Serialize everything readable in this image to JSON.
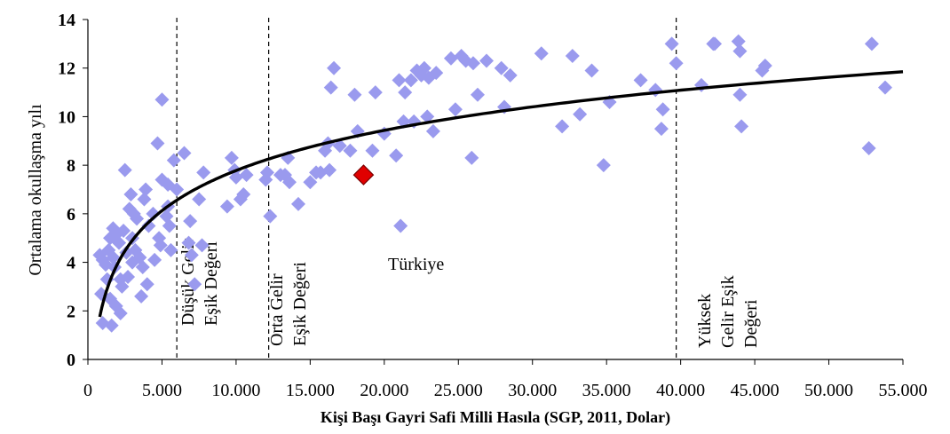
{
  "chart_data": {
    "type": "scatter",
    "ylabel": "Ortalama  okullaşma yılı",
    "xlabel": "Kişi Başı Gayri Safi Milli Hasıla (SGP, 2011, Dolar)",
    "xlim": [
      0,
      55000
    ],
    "ylim": [
      0,
      14
    ],
    "x_ticks": [
      0,
      5000,
      10000,
      15000,
      20000,
      25000,
      30000,
      35000,
      40000,
      45000,
      50000,
      55000
    ],
    "x_tick_labels": [
      "0",
      "5.000",
      "10.000",
      "15.000",
      "20.000",
      "25.000",
      "30.000",
      "35.000",
      "40.000",
      "45.000",
      "50.000",
      "55.000"
    ],
    "y_ticks": [
      0,
      2,
      4,
      6,
      8,
      10,
      12,
      14
    ],
    "y_tick_labels": [
      "0",
      "2",
      "4",
      "6",
      "8",
      "10",
      "12",
      "14"
    ],
    "thresholds": [
      {
        "x": 6000,
        "lines": [
          "Düşük Gelir",
          "Eşik Değeri"
        ]
      },
      {
        "x": 12200,
        "lines": [
          "Orta Gelir",
          "Eşik Değeri"
        ]
      },
      {
        "x": 39700,
        "lines": [
          "Yüksek",
          "Gelir Eşik",
          "Değeri"
        ]
      }
    ],
    "highlight": {
      "label": "Türkiye",
      "x": 18600,
      "y": 7.6
    },
    "trend": {
      "type": "logarithmic",
      "x_start": 800,
      "x_end": 55000,
      "y_start": 1.75,
      "y_end": 11.85
    },
    "points": [
      [
        800,
        4.3
      ],
      [
        900,
        2.7
      ],
      [
        1000,
        4.1
      ],
      [
        1000,
        1.5
      ],
      [
        1200,
        3.9
      ],
      [
        1300,
        3.3
      ],
      [
        1400,
        4.5
      ],
      [
        1500,
        5.0
      ],
      [
        1500,
        2.5
      ],
      [
        1600,
        1.4
      ],
      [
        1700,
        5.4
      ],
      [
        1700,
        4.2
      ],
      [
        1800,
        3.8
      ],
      [
        1900,
        2.2
      ],
      [
        2000,
        5.2
      ],
      [
        2100,
        4.8
      ],
      [
        2200,
        3.3
      ],
      [
        2200,
        1.9
      ],
      [
        2300,
        3.0
      ],
      [
        2400,
        5.3
      ],
      [
        2500,
        7.8
      ],
      [
        2600,
        4.4
      ],
      [
        2700,
        3.4
      ],
      [
        2800,
        6.2
      ],
      [
        2900,
        6.8
      ],
      [
        3000,
        5.0
      ],
      [
        3000,
        4.0
      ],
      [
        3100,
        6.0
      ],
      [
        3200,
        4.5
      ],
      [
        3300,
        5.8
      ],
      [
        3500,
        4.2
      ],
      [
        3600,
        2.6
      ],
      [
        3700,
        3.8
      ],
      [
        3800,
        6.6
      ],
      [
        3900,
        7.0
      ],
      [
        4000,
        3.1
      ],
      [
        4100,
        5.5
      ],
      [
        4400,
        6.0
      ],
      [
        4500,
        4.1
      ],
      [
        4700,
        8.9
      ],
      [
        4800,
        5.0
      ],
      [
        4900,
        4.7
      ],
      [
        5000,
        10.7
      ],
      [
        5000,
        7.4
      ],
      [
        5300,
        5.9
      ],
      [
        5400,
        6.3
      ],
      [
        5400,
        7.2
      ],
      [
        5500,
        5.5
      ],
      [
        5600,
        4.5
      ],
      [
        5800,
        8.2
      ],
      [
        6000,
        7.0
      ],
      [
        6500,
        8.5
      ],
      [
        6800,
        4.8
      ],
      [
        6900,
        5.7
      ],
      [
        7000,
        4.3
      ],
      [
        7200,
        3.1
      ],
      [
        7500,
        6.6
      ],
      [
        7700,
        4.7
      ],
      [
        7800,
        7.7
      ],
      [
        9400,
        6.3
      ],
      [
        9700,
        8.3
      ],
      [
        9900,
        7.8
      ],
      [
        10000,
        7.5
      ],
      [
        10300,
        6.6
      ],
      [
        10500,
        6.8
      ],
      [
        10700,
        7.6
      ],
      [
        12000,
        7.4
      ],
      [
        12100,
        7.7
      ],
      [
        12300,
        5.9
      ],
      [
        13000,
        7.6
      ],
      [
        13300,
        7.6
      ],
      [
        13500,
        8.3
      ],
      [
        13600,
        7.3
      ],
      [
        14200,
        6.4
      ],
      [
        15000,
        7.3
      ],
      [
        15400,
        7.7
      ],
      [
        15700,
        7.7
      ],
      [
        16000,
        8.6
      ],
      [
        16200,
        8.9
      ],
      [
        16300,
        7.8
      ],
      [
        16400,
        11.2
      ],
      [
        16600,
        12.0
      ],
      [
        17000,
        8.8
      ],
      [
        17700,
        8.6
      ],
      [
        18000,
        10.9
      ],
      [
        18200,
        9.4
      ],
      [
        19200,
        8.6
      ],
      [
        19400,
        11.0
      ],
      [
        20000,
        9.3
      ],
      [
        20800,
        8.4
      ],
      [
        21000,
        11.5
      ],
      [
        21100,
        5.5
      ],
      [
        21300,
        9.8
      ],
      [
        21400,
        11.0
      ],
      [
        21800,
        11.5
      ],
      [
        22000,
        9.8
      ],
      [
        22200,
        11.9
      ],
      [
        22500,
        11.7
      ],
      [
        22700,
        12.0
      ],
      [
        22900,
        10.0
      ],
      [
        23000,
        11.6
      ],
      [
        23300,
        9.4
      ],
      [
        23500,
        11.8
      ],
      [
        24500,
        12.4
      ],
      [
        24800,
        10.3
      ],
      [
        25200,
        12.5
      ],
      [
        25500,
        12.3
      ],
      [
        25900,
        8.3
      ],
      [
        26000,
        12.2
      ],
      [
        26300,
        10.9
      ],
      [
        26900,
        12.3
      ],
      [
        27900,
        12.0
      ],
      [
        28100,
        10.4
      ],
      [
        28500,
        11.7
      ],
      [
        30600,
        12.6
      ],
      [
        32000,
        9.6
      ],
      [
        32700,
        12.5
      ],
      [
        33200,
        10.1
      ],
      [
        34000,
        11.9
      ],
      [
        34800,
        8.0
      ],
      [
        35200,
        10.6
      ],
      [
        37300,
        11.5
      ],
      [
        38300,
        11.1
      ],
      [
        38700,
        9.5
      ],
      [
        38800,
        10.3
      ],
      [
        39400,
        13.0
      ],
      [
        39700,
        12.2
      ],
      [
        41400,
        11.3
      ],
      [
        42200,
        13.0
      ],
      [
        42300,
        13.0
      ],
      [
        43900,
        13.1
      ],
      [
        44000,
        10.9
      ],
      [
        44000,
        12.7
      ],
      [
        44100,
        9.6
      ],
      [
        45500,
        11.9
      ],
      [
        45700,
        12.1
      ],
      [
        52700,
        8.7
      ],
      [
        52900,
        13.0
      ],
      [
        53800,
        11.2
      ]
    ]
  }
}
